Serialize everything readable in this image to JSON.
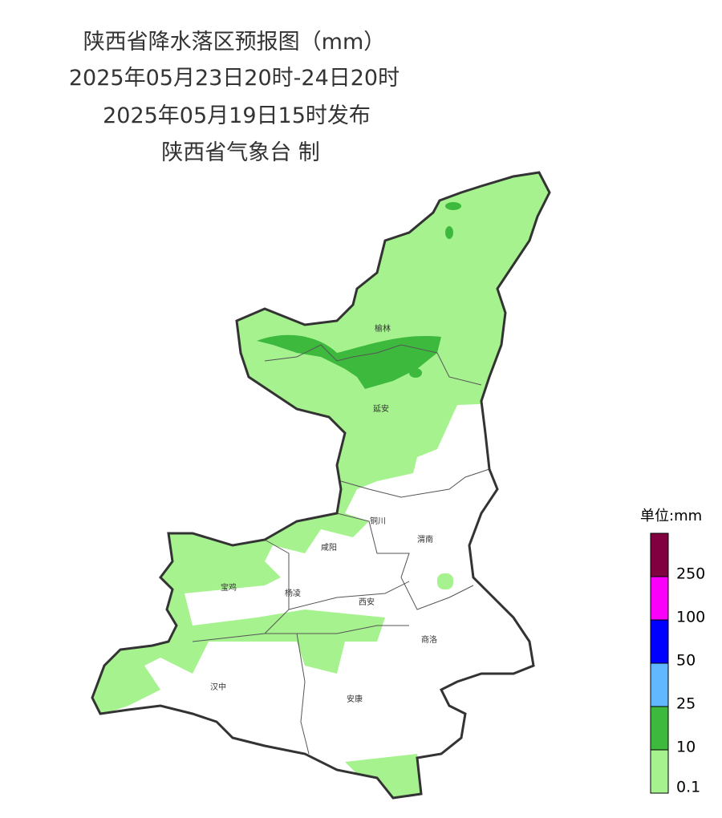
{
  "header": {
    "title": "陕西省降水落区预报图（mm）",
    "period": "2025年05月23日20时-24日20时",
    "issued": "2025年05月19日15时发布",
    "issuer": "陕西省气象台 制"
  },
  "cities": [
    "榆林",
    "延安",
    "铜川",
    "咸阳",
    "渭南",
    "宝鸡",
    "杨凌",
    "西安",
    "商洛",
    "汉中",
    "安康"
  ],
  "legend": {
    "title": "单位:mm",
    "items": [
      {
        "label": "0.1",
        "color": "#a6f28f"
      },
      {
        "label": "10",
        "color": "#3dba3d"
      },
      {
        "label": "25",
        "color": "#61b8ff"
      },
      {
        "label": "50",
        "color": "#0000fe"
      },
      {
        "label": "100",
        "color": "#fa00fa"
      },
      {
        "label": "250",
        "color": "#800040"
      }
    ]
  }
}
